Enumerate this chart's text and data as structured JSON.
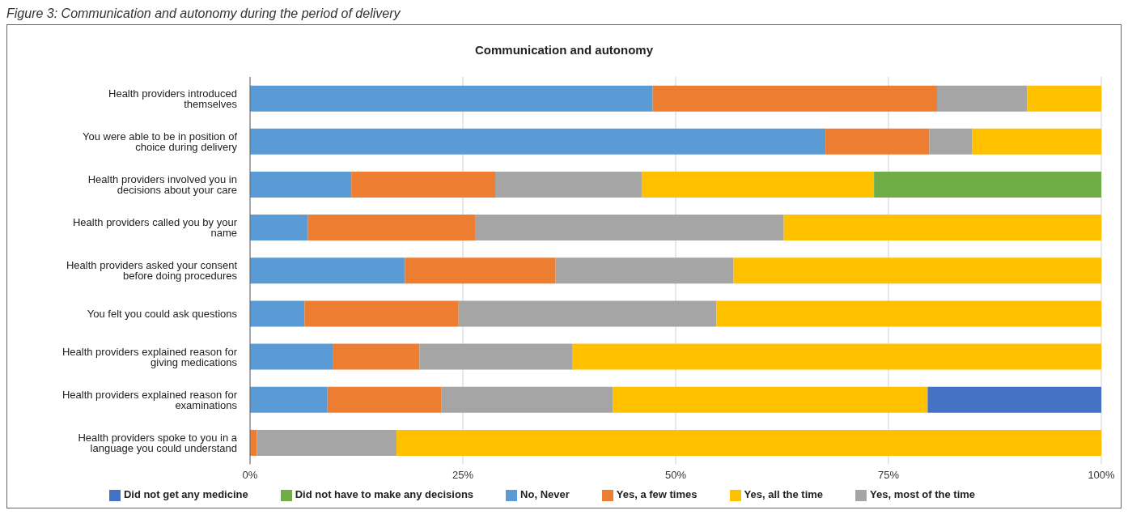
{
  "chart_data": {
    "type": "bar",
    "orientation": "horizontal",
    "stacked": true,
    "title": "Communication and autonomy",
    "annotations": [
      "Figure 3: Communication and autonomy during the period of delivery"
    ],
    "categories": [
      "Health providers introduced themselves",
      "You were able to be in position of choice during delivery",
      "Health providers involved you in decisions about your care",
      "Health providers called you by your name",
      "Health providers asked your consent before doing procedures",
      "You felt you could ask questions",
      "Health providers explained reason for giving medications",
      "Health providers explained reason for examinations",
      "Health providers spoke to you in a language you could understand"
    ],
    "series": [
      {
        "name": "No, Never",
        "color": "#5b9bd5",
        "values": [
          47.3,
          67.6,
          11.9,
          6.8,
          18.2,
          6.4,
          9.7,
          9.1,
          0
        ]
      },
      {
        "name": "Yes, a few times",
        "color": "#ed7d31",
        "values": [
          33.4,
          12.2,
          16.9,
          19.7,
          17.7,
          18.1,
          10.2,
          13.4,
          0.8
        ]
      },
      {
        "name": "Yes, most of the time",
        "color": "#a5a5a5",
        "values": [
          10.6,
          5.0,
          17.2,
          36.2,
          20.9,
          30.3,
          18.0,
          20.1,
          16.4
        ]
      },
      {
        "name": "Yes, all the time",
        "color": "#ffc000",
        "values": [
          8.7,
          15.2,
          27.3,
          37.3,
          43.2,
          45.2,
          62.1,
          37.0,
          82.8
        ]
      },
      {
        "name": "Did not get any medicine",
        "color": "#4472c4",
        "values": [
          null,
          null,
          null,
          null,
          null,
          null,
          null,
          20.4,
          null
        ]
      },
      {
        "name": "Did not have to make any decisions",
        "color": "#70ad47",
        "values": [
          null,
          null,
          26.7,
          null,
          null,
          null,
          null,
          null,
          null
        ]
      }
    ],
    "xlim": [
      0,
      100
    ],
    "xticks": [
      {
        "value": 0,
        "label": "0%"
      },
      {
        "value": 25,
        "label": "25%"
      },
      {
        "value": 50,
        "label": "50%"
      },
      {
        "value": 75,
        "label": "75%"
      },
      {
        "value": 100,
        "label": "100%"
      }
    ],
    "grid": "x",
    "legend": "bottom"
  }
}
